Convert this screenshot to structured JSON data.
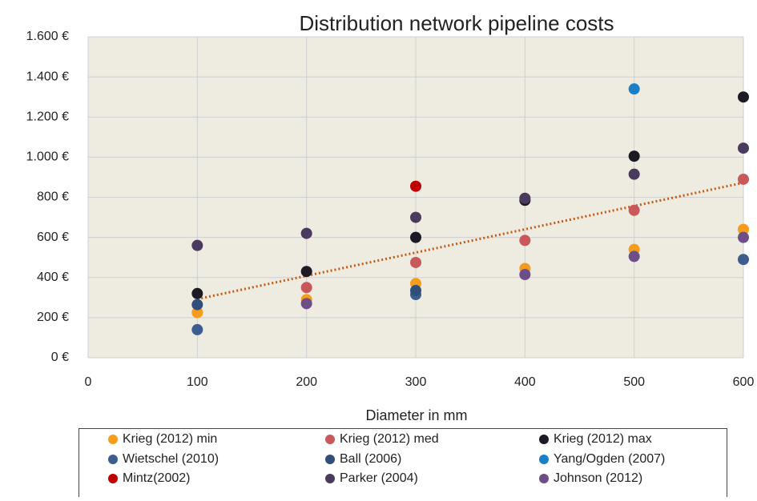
{
  "chart_data": {
    "type": "scatter",
    "title": "Distribution network pipeline costs",
    "x_label": "Diameter in mm",
    "xlim": [
      0,
      600
    ],
    "xticks": [
      0,
      100,
      200,
      300,
      400,
      500,
      600
    ],
    "ylim": [
      0,
      1600
    ],
    "yticks": [
      {
        "value": 0,
        "label": "0 €"
      },
      {
        "value": 200,
        "label": "200 €"
      },
      {
        "value": 400,
        "label": "400 €"
      },
      {
        "value": 600,
        "label": "600 €"
      },
      {
        "value": 800,
        "label": "800 €"
      },
      {
        "value": 1000,
        "label": "1.000 €"
      },
      {
        "value": 1200,
        "label": "1.200 €"
      },
      {
        "value": 1400,
        "label": "1.400 €"
      },
      {
        "value": 1600,
        "label": "1.600 €"
      }
    ],
    "grid": true,
    "trendline": "linear",
    "trend_color": "#c55a11",
    "series": [
      {
        "name": "Krieg (2012) min",
        "color": "#f59c1a",
        "x": [
          100,
          200,
          300,
          400,
          500,
          600
        ],
        "values": [
          225,
          290,
          370,
          445,
          540,
          640
        ]
      },
      {
        "name": "Krieg (2012) med",
        "color": "#c9585a",
        "x": [
          200,
          300,
          400,
          500,
          600
        ],
        "values": [
          350,
          475,
          585,
          735,
          890
        ]
      },
      {
        "name": "Krieg (2012) max",
        "color": "#1d1a26",
        "x": [
          100,
          200,
          300,
          400,
          500,
          600
        ],
        "values": [
          320,
          430,
          600,
          785,
          1005,
          1300
        ]
      },
      {
        "name": "Wietschel (2010)",
        "color": "#3d5d8f",
        "x": [
          100,
          300,
          600
        ],
        "values": [
          140,
          315,
          490
        ]
      },
      {
        "name": "Ball (2006)",
        "color": "#2f4f7a",
        "x": [
          100,
          300
        ],
        "values": [
          265,
          335
        ]
      },
      {
        "name": "Yang/Ogden (2007)",
        "color": "#1a7fc9",
        "x": [
          500
        ],
        "values": [
          1340
        ]
      },
      {
        "name": "Mintz(2002)",
        "color": "#c00000",
        "x": [
          300
        ],
        "values": [
          855
        ]
      },
      {
        "name": "Parker (2004)",
        "color": "#4a3a5e",
        "x": [
          100,
          200,
          300,
          400,
          500,
          600
        ],
        "values": [
          560,
          620,
          700,
          795,
          915,
          1045
        ]
      },
      {
        "name": "Johnson (2012)",
        "color": "#6c4f86",
        "x": [
          200,
          400,
          500,
          600
        ],
        "values": [
          270,
          415,
          505,
          600
        ]
      }
    ]
  }
}
